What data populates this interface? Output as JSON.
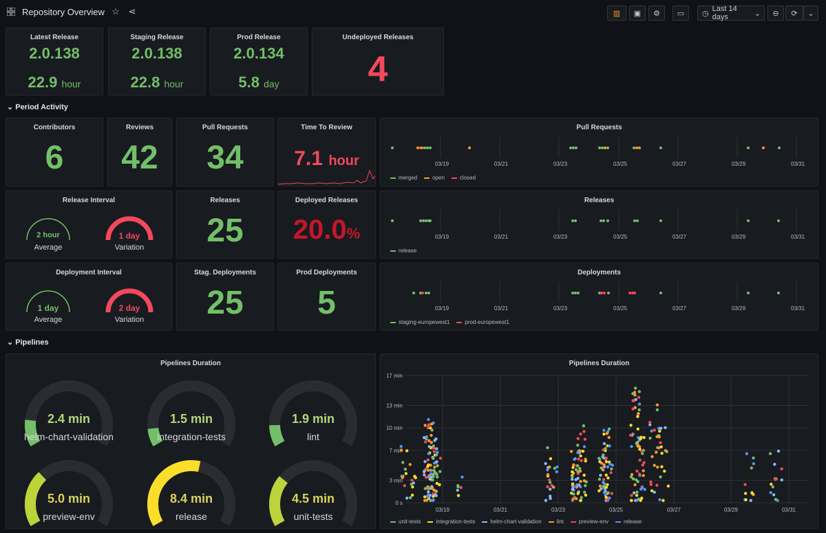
{
  "header": {
    "title": "Repository Overview",
    "time_range": "Last 14 days"
  },
  "release_stats": [
    {
      "title": "Latest Release",
      "version": "2.0.138",
      "age_value": "22.9",
      "age_unit": "hour"
    },
    {
      "title": "Staging Release",
      "version": "2.0.138",
      "age_value": "22.8",
      "age_unit": "hour"
    },
    {
      "title": "Prod Release",
      "version": "2.0.134",
      "age_value": "5.8",
      "age_unit": "day"
    }
  ],
  "undeployed": {
    "title": "Undeployed Releases",
    "value": "4"
  },
  "sections": {
    "period_activity": "Period Activity",
    "pipelines": "Pipelines"
  },
  "activity": {
    "contributors": {
      "title": "Contributors",
      "value": "6"
    },
    "reviews": {
      "title": "Reviews",
      "value": "42"
    },
    "pull_requests": {
      "title": "Pull Requests",
      "value": "34"
    },
    "time_to_review": {
      "title": "Time To Review",
      "value": "7.1",
      "unit": "hour"
    },
    "releases": {
      "title": "Releases",
      "value": "25"
    },
    "deployed_releases": {
      "title": "Deployed Releases",
      "value": "20.0",
      "unit": "%"
    },
    "stag_deployments": {
      "title": "Stag. Deployments",
      "value": "25"
    },
    "prod_deployments": {
      "title": "Prod Deployments",
      "value": "5"
    }
  },
  "release_interval": {
    "title": "Release Interval",
    "average": {
      "value": "2 hour",
      "label": "Average",
      "level": 0.6
    },
    "variation": {
      "value": "1 day",
      "label": "Variation",
      "level": 1.0
    }
  },
  "deployment_interval": {
    "title": "Deployment Interval",
    "average": {
      "value": "1 day",
      "label": "Average",
      "level": 0.6
    },
    "variation": {
      "value": "2 day",
      "label": "Variation",
      "level": 1.0
    }
  },
  "date_ticks": [
    "03/19",
    "03/21",
    "03/23",
    "03/25",
    "03/27",
    "03/29",
    "03/31"
  ],
  "timeline_charts": {
    "pull_requests": {
      "title": "Pull Requests",
      "legend": [
        {
          "name": "merged",
          "color": "#73bf69"
        },
        {
          "name": "open",
          "color": "#ff9830"
        },
        {
          "name": "closed",
          "color": "#f2495c"
        }
      ]
    },
    "releases": {
      "title": "Releases",
      "legend": [
        {
          "name": "release",
          "color": "#73bf69"
        }
      ]
    },
    "deployments": {
      "title": "Deployments",
      "legend": [
        {
          "name": "staging-europewest1",
          "color": "#73bf69"
        },
        {
          "name": "prod-europewest1",
          "color": "#f2495c"
        }
      ]
    }
  },
  "pipelines_gauges": {
    "title": "Pipelines Duration",
    "items": [
      {
        "name": "helm-chart-validation",
        "value": "2.4 min",
        "fraction": 0.15,
        "color": "#73bf69"
      },
      {
        "name": "integration-tests",
        "value": "1.5 min",
        "fraction": 0.1,
        "color": "#73bf69"
      },
      {
        "name": "lint",
        "value": "1.9 min",
        "fraction": 0.12,
        "color": "#73bf69"
      },
      {
        "name": "preview-env",
        "value": "5.0 min",
        "fraction": 0.32,
        "color": "#bcd33b"
      },
      {
        "name": "release",
        "value": "8.4 min",
        "fraction": 0.55,
        "color": "#fade2a"
      },
      {
        "name": "unit-tests",
        "value": "4.5 min",
        "fraction": 0.29,
        "color": "#bcd33b"
      }
    ]
  },
  "chart_data": {
    "type": "scatter",
    "title": "Pipelines Duration",
    "y_ticks": [
      "0 s",
      "3 min",
      "7 min",
      "10 min",
      "13 min",
      "17 min"
    ],
    "x_ticks": [
      "03/19",
      "03/21",
      "03/23",
      "03/25",
      "03/27",
      "03/29",
      "03/31"
    ],
    "ylim": [
      0,
      17
    ],
    "series": [
      {
        "name": "unit-tests",
        "color": "#73bf69"
      },
      {
        "name": "integration-tests",
        "color": "#fade2a"
      },
      {
        "name": "helm-chart-validation",
        "color": "#8ab8ff"
      },
      {
        "name": "lint",
        "color": "#ff9830"
      },
      {
        "name": "preview-env",
        "color": "#f2495c"
      },
      {
        "name": "release",
        "color": "#5794f2"
      }
    ]
  }
}
